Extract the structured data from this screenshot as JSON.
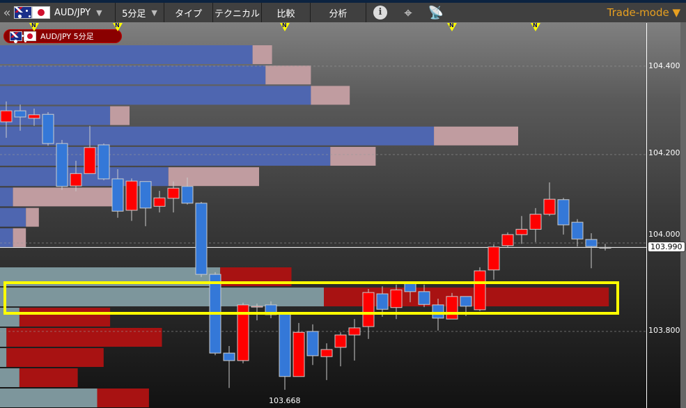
{
  "toolbar": {
    "symbol": "AUD/JPY",
    "timeframe": "5分足",
    "type_label": "タイプ",
    "technical_label": "テクニカル",
    "compare_label": "比較",
    "analysis_label": "分析",
    "trade_mode_label": "Trade-mode ▼",
    "icons": [
      "double-chevron-left-icon",
      "australia-flag-icon",
      "japan-flag-icon",
      "info-icon",
      "crosshair-icon",
      "satellite-dish-icon"
    ]
  },
  "badge": {
    "label": "AUD/JPY 5分足"
  },
  "colors": {
    "up": "#ff0000",
    "down": "#3478d8",
    "accent": "#e8a020",
    "highlight": "#ffff00",
    "bid": "#4e66b0",
    "bid_alt": "#c09ca0",
    "ask": "#7d969c",
    "ask_alt": "#a81212"
  },
  "news_marker_label": "N",
  "chart_data": {
    "type": "candlestick",
    "ylim": [
      103.627,
      104.498
    ],
    "y_ticks": [
      "104.400",
      "104.200",
      "104.000",
      "103.800"
    ],
    "gridlines": true,
    "current_price": "103.990",
    "low_label": "103.668",
    "news_candle_indices": [
      2,
      8,
      20,
      32,
      38
    ],
    "candles": [
      [
        104.274,
        104.32,
        104.238,
        104.299
      ],
      [
        104.299,
        104.313,
        104.254,
        104.285
      ],
      [
        104.282,
        104.304,
        104.265,
        104.29
      ],
      [
        104.291,
        104.296,
        104.22,
        104.225
      ],
      [
        104.225,
        104.233,
        104.12,
        104.128
      ],
      [
        104.129,
        104.186,
        104.117,
        104.157
      ],
      [
        104.157,
        104.265,
        104.157,
        104.216
      ],
      [
        104.222,
        104.225,
        104.142,
        104.145
      ],
      [
        104.145,
        104.167,
        104.057,
        104.072
      ],
      [
        104.074,
        104.146,
        104.05,
        104.14
      ],
      [
        104.139,
        104.139,
        104.038,
        104.079
      ],
      [
        104.083,
        104.118,
        104.069,
        104.102
      ],
      [
        104.101,
        104.139,
        104.069,
        104.124
      ],
      [
        104.128,
        104.148,
        104.087,
        104.09
      ],
      [
        104.09,
        104.093,
        103.923,
        103.929
      ],
      [
        103.929,
        103.934,
        103.746,
        103.751
      ],
      [
        103.751,
        103.767,
        103.672,
        103.734
      ],
      [
        103.734,
        103.865,
        103.728,
        103.86
      ],
      [
        103.855,
        103.863,
        103.825,
        103.857
      ],
      [
        103.86,
        103.868,
        103.83,
        103.838
      ],
      [
        103.839,
        103.839,
        103.668,
        103.698
      ],
      [
        103.698,
        103.819,
        103.698,
        103.798
      ],
      [
        103.8,
        103.816,
        103.724,
        103.745
      ],
      [
        103.743,
        103.773,
        103.69,
        103.759
      ],
      [
        103.764,
        103.798,
        103.721,
        103.792
      ],
      [
        103.792,
        103.828,
        103.734,
        103.808
      ],
      [
        103.811,
        103.896,
        103.783,
        103.888
      ],
      [
        103.885,
        103.902,
        103.833,
        103.85
      ],
      [
        103.854,
        103.906,
        103.828,
        103.894
      ],
      [
        103.909,
        103.909,
        103.866,
        103.89
      ],
      [
        103.89,
        103.906,
        103.855,
        103.861
      ],
      [
        103.86,
        103.874,
        103.802,
        103.83
      ],
      [
        103.828,
        103.887,
        103.828,
        103.879
      ],
      [
        103.879,
        103.879,
        103.835,
        103.857
      ],
      [
        103.849,
        103.945,
        103.846,
        103.937
      ],
      [
        103.939,
        103.997,
        103.917,
        103.991
      ],
      [
        103.994,
        104.024,
        103.989,
        104.019
      ],
      [
        104.019,
        104.061,
        103.998,
        104.031
      ],
      [
        104.031,
        104.079,
        104.002,
        104.065
      ],
      [
        104.065,
        104.137,
        104.061,
        104.099
      ],
      [
        104.098,
        104.102,
        104.019,
        104.041
      ],
      [
        104.047,
        104.054,
        103.992,
        104.009
      ],
      [
        104.008,
        104.022,
        103.943,
        103.992
      ],
      [
        103.99,
        103.998,
        103.983,
        103.99
      ]
    ],
    "order_book_upper": [
      [
        39,
        3
      ],
      [
        41,
        7
      ],
      [
        48,
        6
      ],
      [
        17,
        3
      ],
      [
        67,
        13
      ],
      [
        51,
        7
      ],
      [
        26,
        14
      ],
      [
        2,
        17
      ],
      [
        4,
        2
      ],
      [
        2,
        2
      ]
    ],
    "order_book_lower": [
      [
        34,
        11
      ],
      [
        50,
        44
      ],
      [
        3,
        14
      ],
      [
        1,
        24
      ],
      [
        1,
        15
      ],
      [
        3,
        9
      ],
      [
        15,
        8
      ]
    ]
  }
}
